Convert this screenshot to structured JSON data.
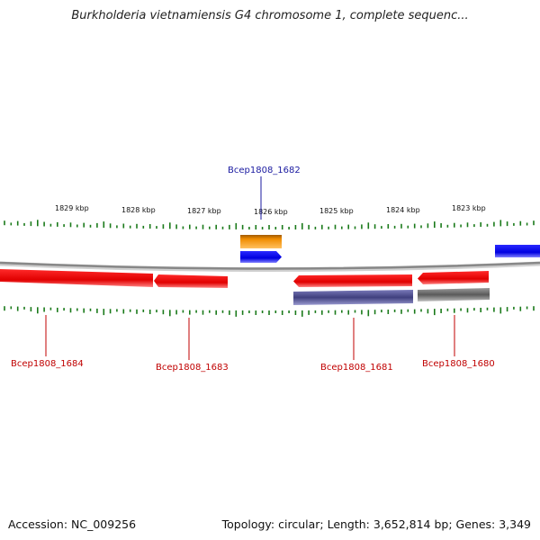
{
  "title": "Burkholderia vietnamiensis G4 chromosome 1, complete sequenc...",
  "footer": {
    "accession": "Accession: NC_009256",
    "summary": "Topology: circular; Length: 3,652,814 bp; Genes: 3,349"
  },
  "colors": {
    "forward_gene": "#e00000",
    "reverse_gene": "#e00000",
    "blue_feature": "#0a0ae8",
    "orange_feature": "#f08c00",
    "purple_feature": "#4a4a8c",
    "gray_feature": "#707070",
    "backbone": "#909090",
    "ticks": "#1a7a1a",
    "label_red": "#c00000",
    "label_blue": "#1a1aa0"
  },
  "kbp_labels": [
    "1829 kbp",
    "1828 kbp",
    "1827 kbp",
    "1826 kbp",
    "1825 kbp",
    "1824 kbp",
    "1823 kbp"
  ],
  "gene_labels": {
    "g1682": "Bcep1808_1682",
    "g1684": "Bcep1808_1684",
    "g1683": "Bcep1808_1683",
    "g1681": "Bcep1808_1681",
    "g1680": "Bcep1808_1680"
  }
}
